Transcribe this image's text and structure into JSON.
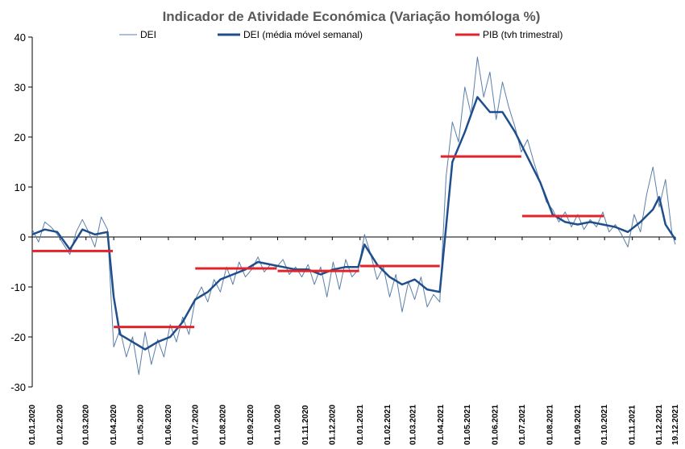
{
  "chart_data": {
    "type": "line",
    "title": "Indicador de Atividade  Económica (Variação homóloga %)",
    "ylim": [
      -30,
      40
    ],
    "yticks": [
      -30,
      -20,
      -10,
      0,
      10,
      20,
      30,
      40
    ],
    "xlim": [
      "2020-01-01",
      "2021-12-19"
    ],
    "xticks": [
      "01.01.2020",
      "01.02.2020",
      "01.03.2020",
      "01.04.2020",
      "01.05.2020",
      "01.06.2020",
      "01.07.2020",
      "01.08.2020",
      "01.09.2020",
      "01.10.2020",
      "01.11.2020",
      "01.12.2020",
      "01.01.2021",
      "01.02.2021",
      "01.03.2021",
      "01.04.2021",
      "01.05.2021",
      "01.06.2021",
      "01.07.2021",
      "01.08.2021",
      "01.09.2021",
      "01.10.2021",
      "01.11.2021",
      "01.12.2021",
      "19.12.2021"
    ],
    "legend": {
      "placement": "top"
    },
    "colors": {
      "daily": "#5b7fa8",
      "weekly": "#1f4e8c",
      "gdp": "#e2232a",
      "axis": "#000000",
      "title": "#595959"
    },
    "series": [
      {
        "name": "DEI",
        "kind": "daily",
        "x": [
          "2020-01-01",
          "2020-01-08",
          "2020-01-15",
          "2020-01-22",
          "2020-01-29",
          "2020-02-05",
          "2020-02-12",
          "2020-02-19",
          "2020-02-26",
          "2020-03-04",
          "2020-03-11",
          "2020-03-18",
          "2020-03-25",
          "2020-04-01",
          "2020-04-08",
          "2020-04-15",
          "2020-04-22",
          "2020-04-29",
          "2020-05-06",
          "2020-05-13",
          "2020-05-20",
          "2020-05-27",
          "2020-06-03",
          "2020-06-10",
          "2020-06-17",
          "2020-06-24",
          "2020-07-01",
          "2020-07-08",
          "2020-07-15",
          "2020-07-22",
          "2020-07-29",
          "2020-08-05",
          "2020-08-12",
          "2020-08-19",
          "2020-08-26",
          "2020-09-02",
          "2020-09-09",
          "2020-09-16",
          "2020-09-23",
          "2020-09-30",
          "2020-10-07",
          "2020-10-14",
          "2020-10-21",
          "2020-10-28",
          "2020-11-04",
          "2020-11-11",
          "2020-11-18",
          "2020-11-25",
          "2020-12-02",
          "2020-12-09",
          "2020-12-16",
          "2020-12-23",
          "2020-12-30",
          "2021-01-06",
          "2021-01-13",
          "2021-01-20",
          "2021-01-27",
          "2021-02-03",
          "2021-02-10",
          "2021-02-17",
          "2021-02-24",
          "2021-03-03",
          "2021-03-10",
          "2021-03-17",
          "2021-03-24",
          "2021-03-31",
          "2021-04-07",
          "2021-04-14",
          "2021-04-21",
          "2021-04-28",
          "2021-05-05",
          "2021-05-12",
          "2021-05-19",
          "2021-05-26",
          "2021-06-02",
          "2021-06-09",
          "2021-06-16",
          "2021-06-23",
          "2021-06-30",
          "2021-07-07",
          "2021-07-14",
          "2021-07-21",
          "2021-07-28",
          "2021-08-04",
          "2021-08-11",
          "2021-08-18",
          "2021-08-25",
          "2021-09-01",
          "2021-09-08",
          "2021-09-15",
          "2021-09-22",
          "2021-09-29",
          "2021-10-06",
          "2021-10-13",
          "2021-10-20",
          "2021-10-27",
          "2021-11-03",
          "2021-11-10",
          "2021-11-17",
          "2021-11-24",
          "2021-12-01",
          "2021-12-08",
          "2021-12-15",
          "2021-12-19"
        ],
        "values": [
          1.5,
          -1.0,
          3.0,
          2.0,
          0.5,
          -1.5,
          -3.5,
          1.0,
          3.5,
          1.0,
          -2.0,
          4.0,
          1.5,
          -22.0,
          -18.5,
          -24.0,
          -20.0,
          -27.5,
          -19.0,
          -25.5,
          -20.5,
          -24.0,
          -17.5,
          -21.0,
          -16.0,
          -19.5,
          -12.5,
          -10.0,
          -13.0,
          -8.5,
          -11.0,
          -6.0,
          -9.5,
          -5.0,
          -8.0,
          -6.5,
          -4.0,
          -7.0,
          -5.5,
          -6.0,
          -4.5,
          -7.5,
          -6.0,
          -8.0,
          -5.5,
          -9.5,
          -6.0,
          -12.0,
          -5.0,
          -10.5,
          -4.5,
          -8.0,
          -6.5,
          0.5,
          -3.5,
          -8.5,
          -6.0,
          -12.0,
          -7.5,
          -15.0,
          -9.0,
          -12.5,
          -8.0,
          -14.0,
          -11.5,
          -13.0,
          12.0,
          23.0,
          19.0,
          30.0,
          24.5,
          36.0,
          28.0,
          33.0,
          23.5,
          31.0,
          26.0,
          22.0,
          17.0,
          19.5,
          15.0,
          11.0,
          7.0,
          5.5,
          3.0,
          5.0,
          2.0,
          4.5,
          1.5,
          3.5,
          2.0,
          5.0,
          1.0,
          2.5,
          0.5,
          -2.0,
          4.5,
          1.0,
          8.5,
          14.0,
          6.0,
          11.5,
          1.0,
          -1.5
        ]
      },
      {
        "name": "DEI (média móvel semanal)",
        "kind": "weekly",
        "x": [
          "2020-01-01",
          "2020-01-15",
          "2020-01-29",
          "2020-02-12",
          "2020-02-26",
          "2020-03-11",
          "2020-03-25",
          "2020-04-01",
          "2020-04-08",
          "2020-04-22",
          "2020-05-06",
          "2020-05-20",
          "2020-06-03",
          "2020-06-17",
          "2020-07-01",
          "2020-07-15",
          "2020-07-29",
          "2020-08-12",
          "2020-08-26",
          "2020-09-09",
          "2020-09-23",
          "2020-10-07",
          "2020-10-21",
          "2020-11-04",
          "2020-11-18",
          "2020-12-02",
          "2020-12-16",
          "2020-12-30",
          "2021-01-06",
          "2021-01-20",
          "2021-02-03",
          "2021-02-17",
          "2021-03-03",
          "2021-03-17",
          "2021-03-31",
          "2021-04-07",
          "2021-04-14",
          "2021-04-28",
          "2021-05-12",
          "2021-05-26",
          "2021-06-09",
          "2021-06-23",
          "2021-07-07",
          "2021-07-21",
          "2021-08-04",
          "2021-08-18",
          "2021-09-01",
          "2021-09-15",
          "2021-09-29",
          "2021-10-13",
          "2021-10-27",
          "2021-11-10",
          "2021-11-24",
          "2021-12-01",
          "2021-12-08",
          "2021-12-19"
        ],
        "values": [
          0.5,
          1.5,
          1.0,
          -2.5,
          1.5,
          0.5,
          1.0,
          -12.0,
          -19.5,
          -21.0,
          -22.5,
          -21.0,
          -20.0,
          -17.0,
          -12.5,
          -11.0,
          -8.5,
          -7.5,
          -6.5,
          -5.0,
          -5.5,
          -6.0,
          -6.5,
          -6.5,
          -7.5,
          -6.5,
          -6.0,
          -6.0,
          -1.5,
          -5.5,
          -8.0,
          -9.5,
          -8.5,
          -10.5,
          -11.0,
          2.0,
          15.0,
          21.0,
          28.0,
          25.0,
          25.0,
          21.0,
          16.0,
          11.0,
          4.5,
          3.0,
          2.5,
          3.0,
          2.5,
          2.0,
          1.0,
          3.0,
          5.5,
          8.0,
          2.5,
          -0.5
        ]
      },
      {
        "name": "PIB (tvh trimestral)",
        "kind": "gdp",
        "segments": [
          {
            "x": [
              "2020-01-01",
              "2020-03-31"
            ],
            "value": -2.8
          },
          {
            "x": [
              "2020-04-01",
              "2020-06-30"
            ],
            "value": -18.0
          },
          {
            "x": [
              "2020-07-01",
              "2020-09-30"
            ],
            "value": -6.3
          },
          {
            "x": [
              "2020-10-01",
              "2020-12-31"
            ],
            "value": -6.8
          },
          {
            "x": [
              "2021-01-01",
              "2021-03-31"
            ],
            "value": -5.8
          },
          {
            "x": [
              "2021-04-01",
              "2021-06-30"
            ],
            "value": 16.1
          },
          {
            "x": [
              "2021-07-01",
              "2021-09-30"
            ],
            "value": 4.2
          }
        ]
      }
    ]
  }
}
